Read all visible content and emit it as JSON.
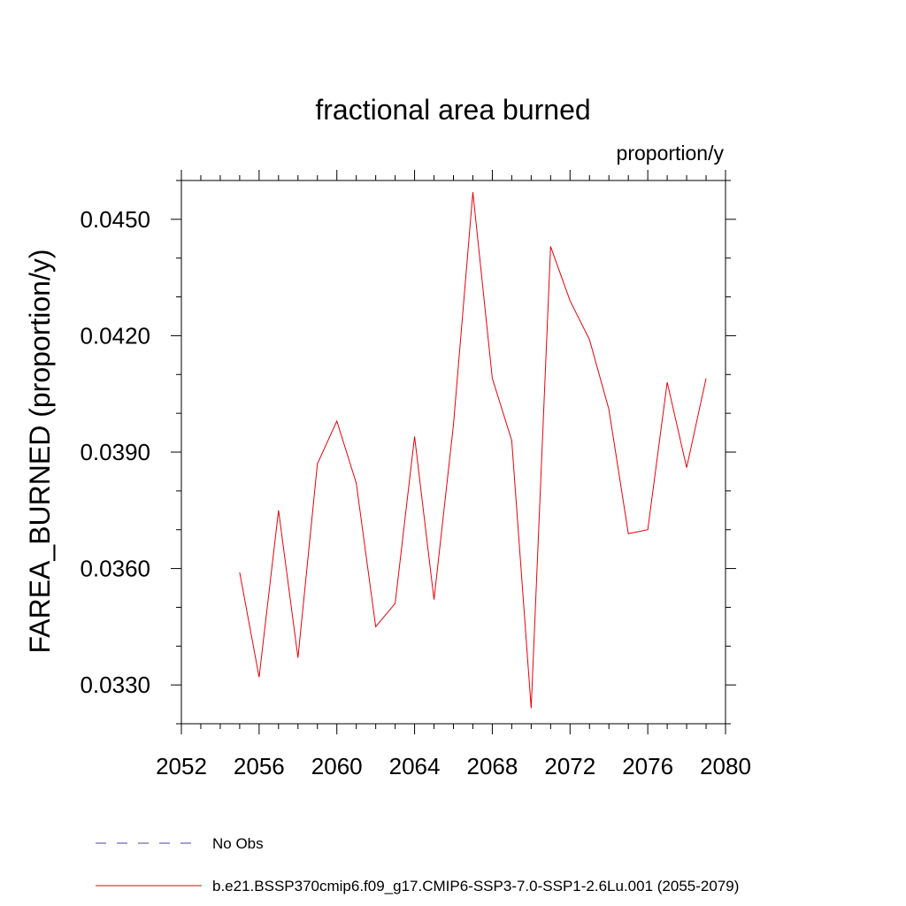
{
  "chart_data": {
    "type": "line",
    "title": "fractional area burned",
    "units_label": "proportion/y",
    "ylabel": "FAREA_BURNED  (proportion/y)",
    "xlabel": "",
    "xlim": [
      2052,
      2080
    ],
    "ylim": [
      0.032,
      0.046
    ],
    "x_ticks": [
      2052,
      2056,
      2060,
      2064,
      2068,
      2072,
      2076,
      2080
    ],
    "x_tick_labels": [
      "2052",
      "2056",
      "2060",
      "2064",
      "2068",
      "2072",
      "2076",
      "2080"
    ],
    "y_ticks": [
      0.033,
      0.036,
      0.039,
      0.042,
      0.045
    ],
    "y_tick_labels": [
      "0.0330",
      "0.0360",
      "0.0390",
      "0.0420",
      "0.0450"
    ],
    "grid": false,
    "legend_placement": "bottom",
    "series": [
      {
        "name": "b.e21.BSSP370cmip6.f09_g17.CMIP6-SSP3-7.0-SSP1-2.6Lu.001 (2055-2079)",
        "color": "#e8000b",
        "style": "solid",
        "x": [
          2055,
          2056,
          2057,
          2058,
          2059,
          2060,
          2061,
          2062,
          2063,
          2064,
          2065,
          2066,
          2067,
          2068,
          2069,
          2070,
          2071,
          2072,
          2073,
          2074,
          2075,
          2076,
          2077,
          2078,
          2079
        ],
        "y": [
          0.0359,
          0.0332,
          0.0375,
          0.0337,
          0.0387,
          0.0398,
          0.0382,
          0.0345,
          0.0351,
          0.0394,
          0.0352,
          0.0397,
          0.0457,
          0.0409,
          0.0393,
          0.0324,
          0.0443,
          0.0429,
          0.0419,
          0.0401,
          0.0369,
          0.037,
          0.0408,
          0.0386,
          0.0409
        ]
      }
    ],
    "legend": [
      {
        "label": "No Obs",
        "color": "#4b3fa0",
        "style": "dashed"
      },
      {
        "label": "b.e21.BSSP370cmip6.f09_g17.CMIP6-SSP3-7.0-SSP1-2.6Lu.001 (2055-2079)",
        "color": "#e8000b",
        "style": "solid"
      }
    ]
  }
}
